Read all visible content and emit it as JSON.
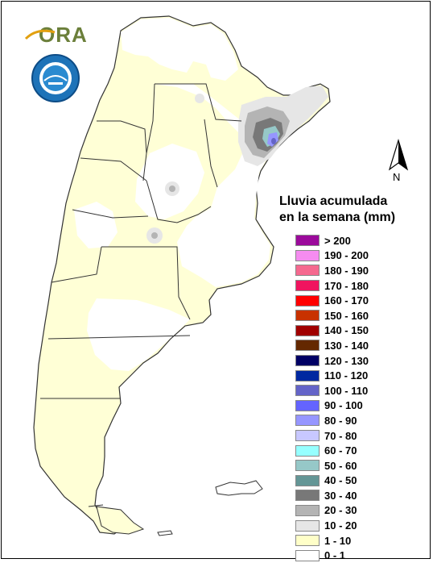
{
  "header": {
    "logo_text": "ORA",
    "seal_icon": "smn-seal-icon"
  },
  "north_arrow": {
    "label": "N",
    "icon": "north-arrow-icon"
  },
  "legend": {
    "title_line1": "Lluvia acumulada",
    "title_line2": "en la semana (mm)",
    "items": [
      {
        "label": "> 200",
        "color": "#9b0a9b"
      },
      {
        "label": "190 - 200",
        "color": "#f58cf0"
      },
      {
        "label": "180 - 190",
        "color": "#f5698f"
      },
      {
        "label": "170 - 180",
        "color": "#f0145f"
      },
      {
        "label": "160 - 170",
        "color": "#ff0000"
      },
      {
        "label": "150 - 160",
        "color": "#c83200"
      },
      {
        "label": "140 - 150",
        "color": "#a00000"
      },
      {
        "label": "130 - 140",
        "color": "#642800"
      },
      {
        "label": "120 - 130",
        "color": "#000064"
      },
      {
        "label": "110 - 120",
        "color": "#0028a0"
      },
      {
        "label": "100 - 110",
        "color": "#6464c8"
      },
      {
        "label": "90 - 100",
        "color": "#6464ff"
      },
      {
        "label": "80 - 90",
        "color": "#9696ff"
      },
      {
        "label": "70 - 80",
        "color": "#c8c8ff"
      },
      {
        "label": "60 - 70",
        "color": "#96ffff"
      },
      {
        "label": "50 - 60",
        "color": "#96c8c8"
      },
      {
        "label": "40 - 50",
        "color": "#649696"
      },
      {
        "label": "30 - 40",
        "color": "#787878"
      },
      {
        "label": "20 - 30",
        "color": "#b4b4b4"
      },
      {
        "label": "10 - 20",
        "color": "#e6e6e6"
      },
      {
        "label": "1 - 10",
        "color": "#ffffc8"
      },
      {
        "label": "0 - 1",
        "color": "#ffffff"
      }
    ]
  }
}
